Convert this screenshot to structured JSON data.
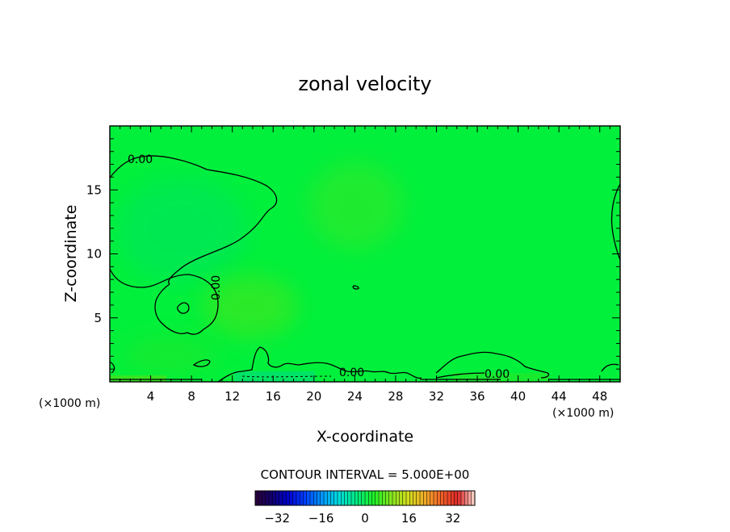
{
  "chart_data": {
    "type": "heatmap",
    "title": "zonal velocity",
    "xlabel": "X-coordinate",
    "ylabel": "Z-coordinate",
    "x_unit_label": "(×1000 m)",
    "y_unit_label": "(×1000 m)",
    "xlim": [
      0,
      50
    ],
    "ylim": [
      0,
      20
    ],
    "x_ticks": [
      4,
      8,
      12,
      16,
      20,
      24,
      28,
      32,
      36,
      40,
      44,
      48
    ],
    "x_tick_labels": [
      "4",
      "8",
      "12",
      "16",
      "20",
      "24",
      "28",
      "32",
      "36",
      "40",
      "44",
      "48"
    ],
    "y_ticks": [
      5,
      10,
      15
    ],
    "y_tick_labels": [
      "5",
      "10",
      "15"
    ],
    "contour_interval_text": "CONTOUR INTERVAL = 5.000E+00",
    "contour_labels": [
      "0.00",
      "0.00",
      "0.00",
      "0.00"
    ],
    "field_value_range": [
      -5,
      5
    ],
    "colorbar": {
      "range": [
        -40,
        40
      ],
      "tick_values": [
        -32,
        -16,
        0,
        16,
        32
      ],
      "tick_labels": [
        "−32",
        "−16",
        "0",
        "16",
        "32"
      ]
    },
    "colors": {
      "background_field": "#00f03c",
      "frame": "#000000"
    },
    "grid": false
  }
}
